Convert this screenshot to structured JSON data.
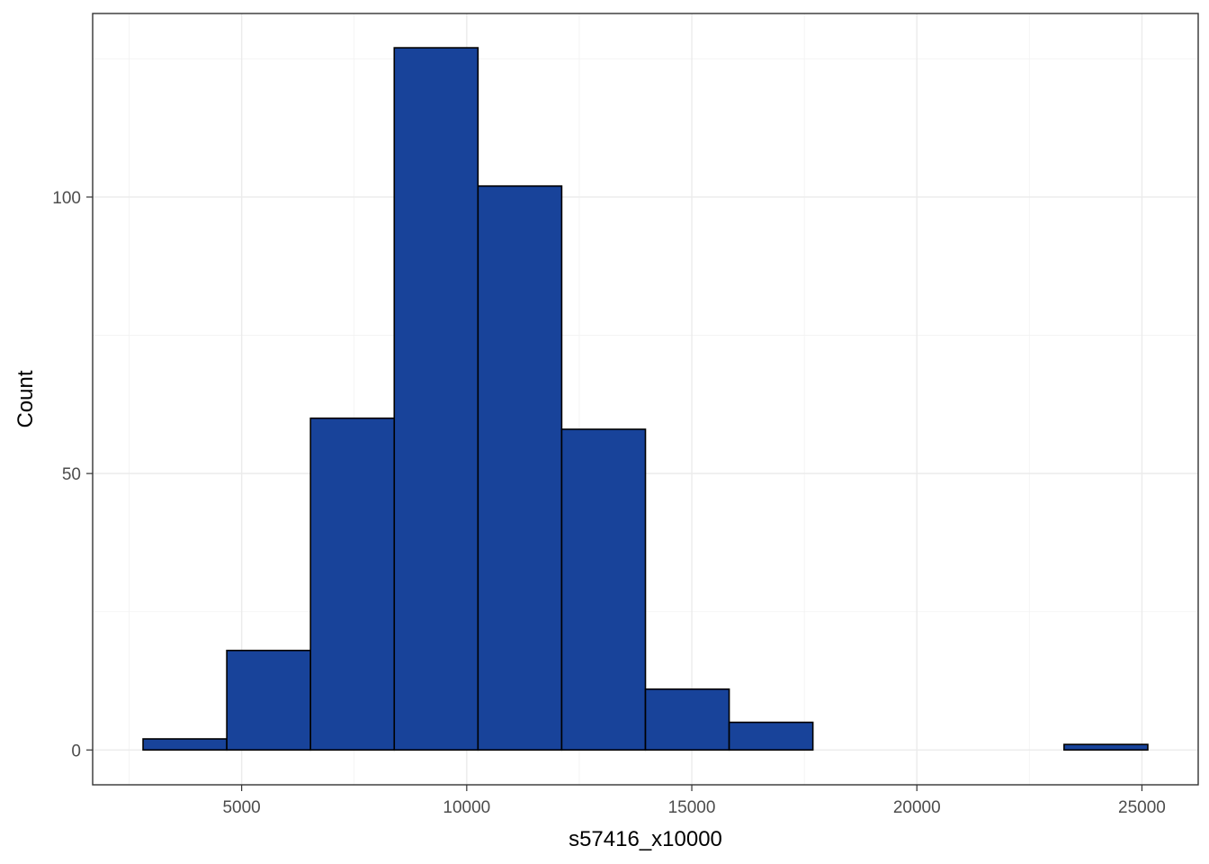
{
  "chart_data": {
    "type": "bar",
    "subtype": "histogram",
    "xlabel": "s57416_x10000",
    "ylabel": "Count",
    "bin_width": 1860,
    "bins": [
      {
        "x_start": 2810,
        "x_end": 4670,
        "count": 2
      },
      {
        "x_start": 4670,
        "x_end": 6530,
        "count": 18
      },
      {
        "x_start": 6530,
        "x_end": 8390,
        "count": 60
      },
      {
        "x_start": 8390,
        "x_end": 10250,
        "count": 127
      },
      {
        "x_start": 10250,
        "x_end": 12110,
        "count": 102
      },
      {
        "x_start": 12110,
        "x_end": 13970,
        "count": 58
      },
      {
        "x_start": 13970,
        "x_end": 15830,
        "count": 11
      },
      {
        "x_start": 15830,
        "x_end": 17690,
        "count": 5
      },
      {
        "x_start": 17690,
        "x_end": 19550,
        "count": 0
      },
      {
        "x_start": 19550,
        "x_end": 21410,
        "count": 0
      },
      {
        "x_start": 21410,
        "x_end": 23270,
        "count": 0
      },
      {
        "x_start": 23270,
        "x_end": 25130,
        "count": 1
      }
    ],
    "xlim": [
      1690,
      26250
    ],
    "ylim": [
      -6.3,
      133.2
    ],
    "x_ticks": [
      5000,
      10000,
      15000,
      20000,
      25000
    ],
    "x_tick_labels": [
      "5000",
      "10000",
      "15000",
      "20000",
      "25000"
    ],
    "y_ticks": [
      0,
      50,
      100
    ],
    "y_tick_labels": [
      "0",
      "50",
      "100"
    ],
    "x_minor_ticks": [
      2500,
      7500,
      12500,
      17500,
      22500
    ],
    "y_minor_ticks": [
      25,
      75,
      125
    ],
    "grid": true,
    "legend": "none",
    "colors": {
      "bar_fill": "#18439A",
      "bar_outline": "#000000",
      "panel_border": "#333333",
      "grid": "#EBEBEB"
    }
  }
}
